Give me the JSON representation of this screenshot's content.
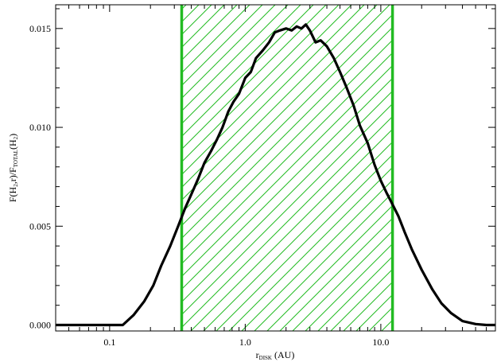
{
  "chart_data": {
    "type": "line",
    "title": "",
    "xscale": "log",
    "xlim": [
      0.04,
      70
    ],
    "ylim": [
      -0.0003,
      0.0162
    ],
    "xticks": [
      0.1,
      1.0,
      10.0
    ],
    "xtick_labels": [
      "0.1",
      "1.0",
      "10.0"
    ],
    "yticks": [
      0.0,
      0.005,
      0.01,
      0.015
    ],
    "ytick_labels": [
      "0.000",
      "0.005",
      "0.010",
      "0.015"
    ],
    "xlabel_main": "r",
    "xlabel_sub": "DISK",
    "xlabel_unit": " (AU)",
    "ylabel_parts": [
      "F(H",
      "2",
      ",r)/F",
      "TOTAL",
      "(H",
      "2",
      ")"
    ],
    "grid": false,
    "line_color": "#000000",
    "band_color": "#22bb22",
    "band": {
      "x_start": 0.34,
      "x_end": 12.2,
      "hatch": "diagonal"
    },
    "series": [
      {
        "x": [
          0.04,
          0.07,
          0.1,
          0.125,
          0.15,
          0.18,
          0.21,
          0.24,
          0.28,
          0.32,
          0.36,
          0.4,
          0.45,
          0.5,
          0.56,
          0.62,
          0.68,
          0.75,
          0.82,
          0.9,
          1.0,
          1.1,
          1.2,
          1.35,
          1.5,
          1.65,
          1.8,
          2.0,
          2.2,
          2.4,
          2.6,
          2.8,
          3.0,
          3.3,
          3.6,
          4.0,
          4.5,
          5.0,
          5.6,
          6.3,
          7.0,
          8.0,
          9.0,
          10.0,
          11.0,
          12.0,
          13.5,
          15.0,
          17.0,
          20.0,
          24.0,
          28.0,
          33.0,
          40.0,
          50.0,
          60.0,
          70.0
        ],
        "y": [
          0.0,
          0.0,
          0.0,
          0.0,
          0.0005,
          0.0012,
          0.002,
          0.003,
          0.004,
          0.005,
          0.0059,
          0.0066,
          0.0074,
          0.0082,
          0.0088,
          0.0094,
          0.01,
          0.0108,
          0.0113,
          0.0117,
          0.0125,
          0.0128,
          0.0135,
          0.0139,
          0.0143,
          0.0148,
          0.0149,
          0.015,
          0.0149,
          0.0151,
          0.015,
          0.0152,
          0.0149,
          0.0143,
          0.0144,
          0.0141,
          0.0135,
          0.0128,
          0.012,
          0.0111,
          0.0101,
          0.0092,
          0.0081,
          0.0073,
          0.0067,
          0.0062,
          0.0055,
          0.0047,
          0.0038,
          0.0028,
          0.0018,
          0.0011,
          0.0006,
          0.0002,
          5e-05,
          0.0,
          0.0
        ]
      }
    ]
  }
}
